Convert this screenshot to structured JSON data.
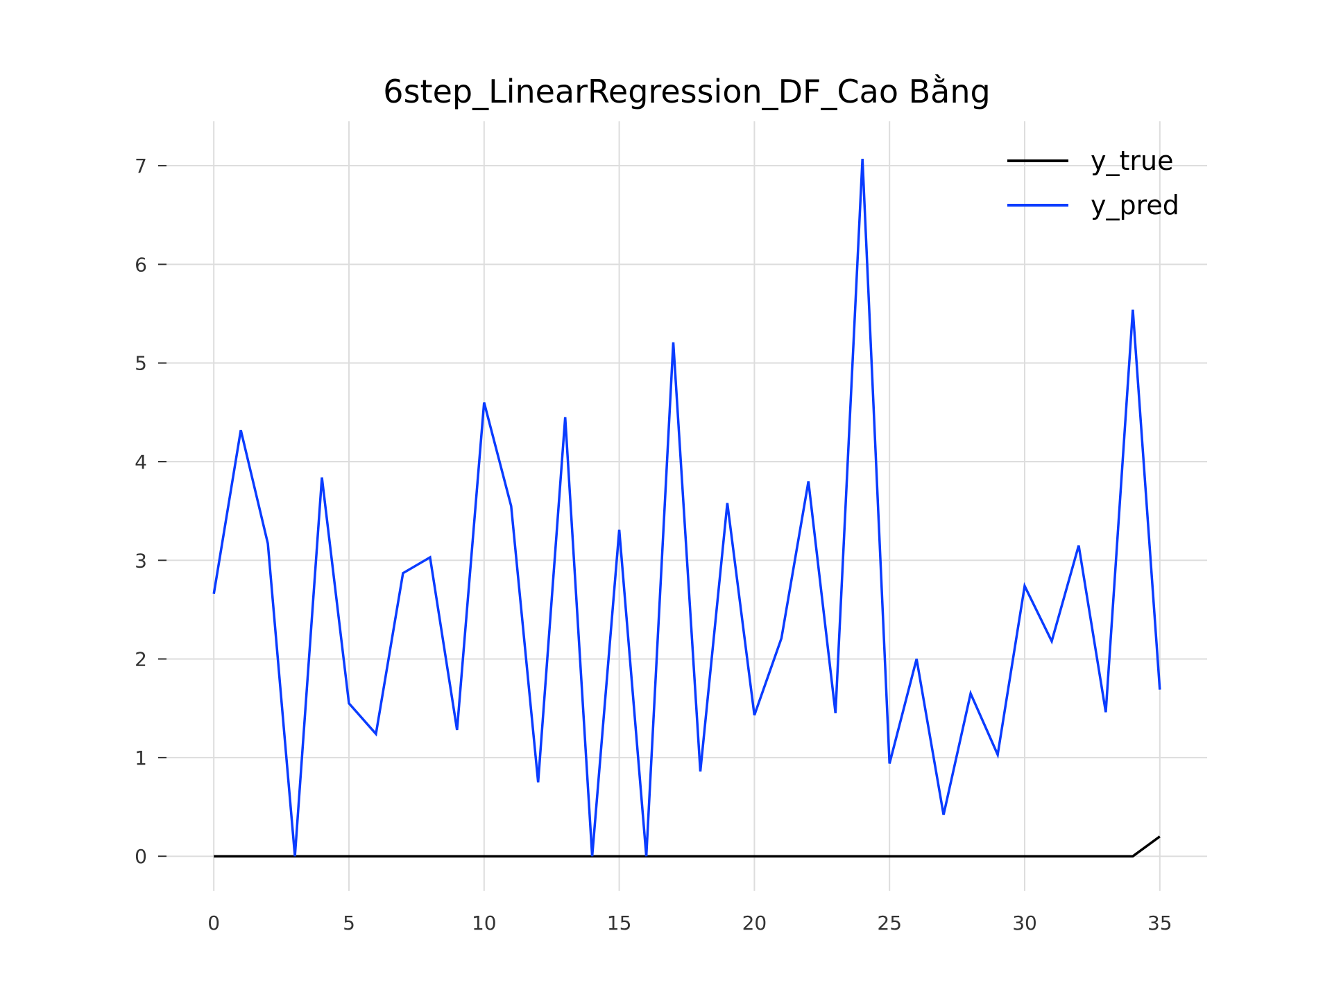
{
  "chart_data": {
    "type": "line",
    "title": "6step_LinearRegression_DF_Cao Bằng",
    "xlabel": "",
    "ylabel": "",
    "xlim": [
      -1.75,
      36.75
    ],
    "ylim": [
      -0.35,
      7.45
    ],
    "xticks": [
      0,
      5,
      10,
      15,
      20,
      25,
      30,
      35
    ],
    "yticks": [
      0,
      1,
      2,
      3,
      4,
      5,
      6,
      7
    ],
    "grid": true,
    "legend_position": "top-right",
    "x": [
      0,
      1,
      2,
      3,
      4,
      5,
      6,
      7,
      8,
      9,
      10,
      11,
      12,
      13,
      14,
      15,
      16,
      17,
      18,
      19,
      20,
      21,
      22,
      23,
      24,
      25,
      26,
      27,
      28,
      29,
      30,
      31,
      32,
      33,
      34,
      35
    ],
    "series": [
      {
        "name": "y_true",
        "color": "#000000",
        "values": [
          0,
          0,
          0,
          0,
          0,
          0,
          0,
          0,
          0,
          0,
          0,
          0,
          0,
          0,
          0,
          0,
          0,
          0,
          0,
          0,
          0,
          0,
          0,
          0,
          0,
          0,
          0,
          0,
          0,
          0,
          0,
          0,
          0,
          0,
          0,
          0.2
        ]
      },
      {
        "name": "y_pred",
        "color": "#0a3cff",
        "values": [
          2.66,
          4.32,
          3.17,
          0.0,
          3.84,
          1.55,
          1.24,
          2.87,
          3.03,
          1.28,
          4.6,
          3.55,
          0.75,
          4.45,
          0.0,
          3.31,
          0.0,
          5.21,
          0.86,
          3.58,
          1.43,
          2.21,
          3.8,
          1.45,
          7.07,
          0.94,
          2.0,
          0.42,
          1.65,
          1.03,
          2.74,
          2.18,
          3.15,
          1.46,
          5.54,
          1.69
        ]
      }
    ]
  }
}
